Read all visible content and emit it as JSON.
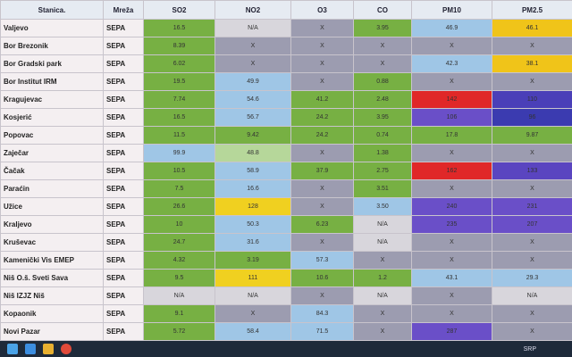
{
  "table": {
    "headers": [
      "Stanica.",
      "Mreža",
      "SO2",
      "NO2",
      "O3",
      "CO",
      "PM10",
      "PM2.5"
    ],
    "rows": [
      [
        "Valjevo",
        "SEPA",
        "16.5",
        "N/A",
        "X",
        "3.95",
        "46.9",
        "46.1"
      ],
      [
        "Bor Brezonik",
        "SEPA",
        "8.39",
        "X",
        "X",
        "X",
        "X",
        "X"
      ],
      [
        "Bor Gradski park",
        "SEPA",
        "6.02",
        "X",
        "X",
        "X",
        "42.3",
        "38.1"
      ],
      [
        "Bor Institut IRM",
        "SEPA",
        "19.5",
        "49.9",
        "X",
        "0.88",
        "X",
        "X"
      ],
      [
        "Kragujevac",
        "SEPA",
        "7.74",
        "54.6",
        "41.2",
        "2.48",
        "142",
        "110"
      ],
      [
        "Kosjerić",
        "SEPA",
        "16.5",
        "56.7",
        "24.2",
        "3.95",
        "106",
        "96"
      ],
      [
        "Popovac",
        "SEPA",
        "11.5",
        "9.42",
        "24.2",
        "0.74",
        "17.8",
        "9.87"
      ],
      [
        "Zaječar",
        "SEPA",
        "99.9",
        "48.8",
        "X",
        "1.38",
        "X",
        "X"
      ],
      [
        "Čačak",
        "SEPA",
        "10.5",
        "58.9",
        "37.9",
        "2.75",
        "162",
        "133"
      ],
      [
        "Paraćin",
        "SEPA",
        "7.5",
        "16.6",
        "X",
        "3.51",
        "X",
        "X"
      ],
      [
        "Užice",
        "SEPA",
        "26.6",
        "128",
        "X",
        "3.50",
        "240",
        "231"
      ],
      [
        "Kraljevo",
        "SEPA",
        "10",
        "50.3",
        "6.23",
        "N/A",
        "235",
        "207"
      ],
      [
        "Kruševac",
        "SEPA",
        "24.7",
        "31.6",
        "X",
        "N/A",
        "X",
        "X"
      ],
      [
        "Kamenički Vis EMEP",
        "SEPA",
        "4.32",
        "3.19",
        "57.3",
        "X",
        "X",
        "X"
      ],
      [
        "Niš O.š. Sveti Sava",
        "SEPA",
        "9.5",
        "111",
        "10.6",
        "1.2",
        "43.1",
        "29.3"
      ],
      [
        "Niš IZJZ Niš",
        "SEPA",
        "N/A",
        "N/A",
        "X",
        "N/A",
        "X",
        "N/A"
      ],
      [
        "Kopaonik",
        "SEPA",
        "9.1",
        "X",
        "84.3",
        "X",
        "X",
        "X"
      ],
      [
        "Novi Pazar",
        "SEPA",
        "5.72",
        "58.4",
        "71.5",
        "X",
        "287",
        "X"
      ]
    ],
    "cell_colors": [
      [
        "#77b043",
        "#d8d6dc",
        "#9c9cb0",
        "#77b043",
        "#9fc6e6",
        "#f0c419"
      ],
      [
        "#77b043",
        "#9c9cb0",
        "#9c9cb0",
        "#9c9cb0",
        "#9c9cb0",
        "#9c9cb0"
      ],
      [
        "#77b043",
        "#9c9cb0",
        "#9c9cb0",
        "#9c9cb0",
        "#9fc6e6",
        "#f0c419"
      ],
      [
        "#77b043",
        "#9fc6e6",
        "#9c9cb0",
        "#77b043",
        "#9c9cb0",
        "#9c9cb0"
      ],
      [
        "#77b043",
        "#9fc6e6",
        "#77b043",
        "#77b043",
        "#e02828",
        "#4a3fb8"
      ],
      [
        "#77b043",
        "#9fc6e6",
        "#77b043",
        "#77b043",
        "#6a4fc8",
        "#3b3bb0"
      ],
      [
        "#77b043",
        "#77b043",
        "#77b043",
        "#77b043",
        "#77b043",
        "#77b043"
      ],
      [
        "#9fc6e6",
        "#b6d79a",
        "#9c9cb0",
        "#77b043",
        "#9c9cb0",
        "#9c9cb0"
      ],
      [
        "#77b043",
        "#9fc6e6",
        "#77b043",
        "#77b043",
        "#e02828",
        "#5a45c0"
      ],
      [
        "#77b043",
        "#9fc6e6",
        "#9c9cb0",
        "#77b043",
        "#9c9cb0",
        "#9c9cb0"
      ],
      [
        "#77b043",
        "#f0d020",
        "#9c9cb0",
        "#9fc6e6",
        "#6a4fc8",
        "#6a4fc8"
      ],
      [
        "#77b043",
        "#9fc6e6",
        "#77b043",
        "#d8d6dc",
        "#6a4fc8",
        "#6a4fc8"
      ],
      [
        "#77b043",
        "#9fc6e6",
        "#9c9cb0",
        "#d8d6dc",
        "#9c9cb0",
        "#9c9cb0"
      ],
      [
        "#77b043",
        "#77b043",
        "#9fc6e6",
        "#9c9cb0",
        "#9c9cb0",
        "#9c9cb0"
      ],
      [
        "#77b043",
        "#f0d020",
        "#77b043",
        "#77b043",
        "#9fc6e6",
        "#9fc6e6"
      ],
      [
        "#d8d6dc",
        "#d8d6dc",
        "#9c9cb0",
        "#d8d6dc",
        "#9c9cb0",
        "#d8d6dc"
      ],
      [
        "#77b043",
        "#9c9cb0",
        "#9fc6e6",
        "#9c9cb0",
        "#9c9cb0",
        "#9c9cb0"
      ],
      [
        "#77b043",
        "#9fc6e6",
        "#9fc6e6",
        "#9c9cb0",
        "#6a4fc8",
        "#9c9cb0"
      ]
    ]
  },
  "taskbar": {
    "language": "SRP"
  }
}
